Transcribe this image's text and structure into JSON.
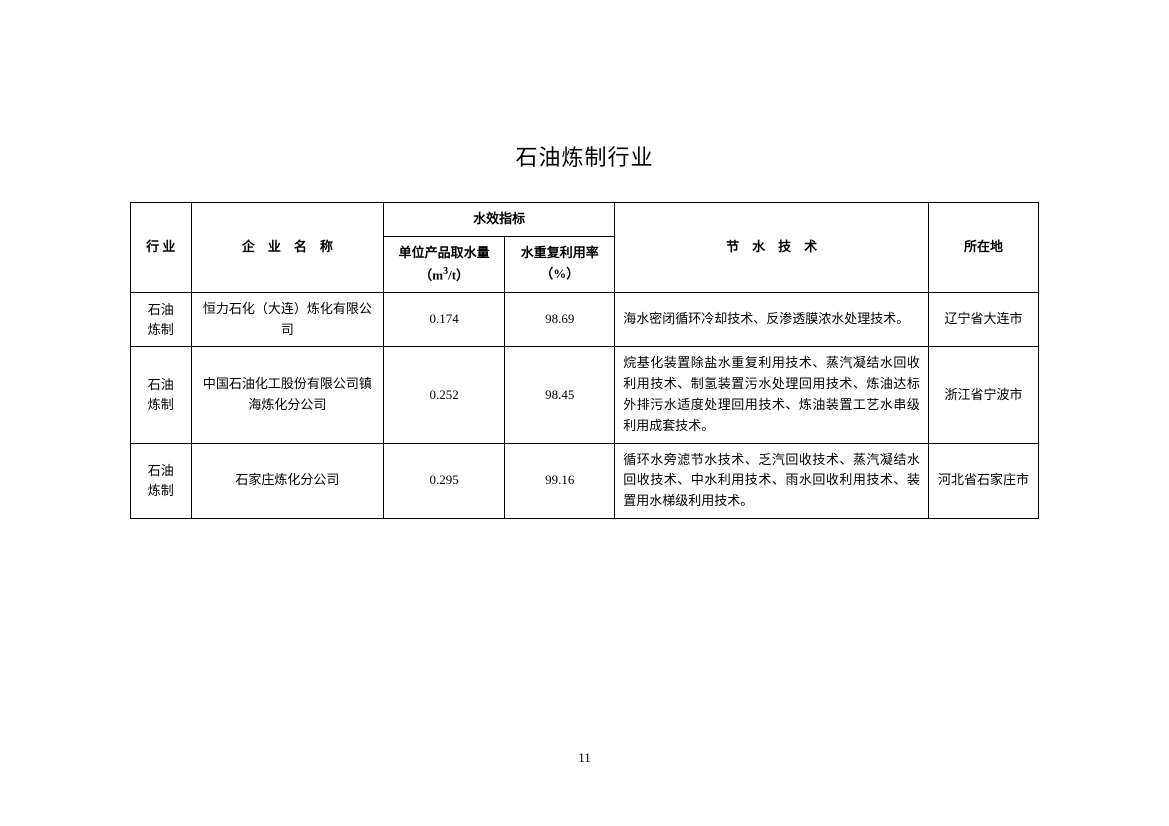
{
  "title": "石油炼制行业",
  "page_number": "11",
  "table": {
    "headers": {
      "industry": "行 业",
      "company": "企　业　名　称",
      "metrics_group": "水效指标",
      "metric1_line1": "单位产品取水量",
      "metric1_line2_prefix": "（m",
      "metric1_line2_sup": "3",
      "metric1_line2_suffix": "/t）",
      "metric2_line1": "水重复利用率",
      "metric2_line2": "（%）",
      "tech": "节　水　技　术",
      "location": "所在地",
      "border_color": "#000000",
      "text_color": "#000000",
      "background_color": "#ffffff",
      "font_size": 13
    },
    "rows": [
      {
        "industry_l1": "石油",
        "industry_l2": "炼制",
        "company": "恒力石化（大连）炼化有限公司",
        "metric1": "0.174",
        "metric2": "98.69",
        "tech": "海水密闭循环冷却技术、反渗透膜浓水处理技术。",
        "location": "辽宁省大连市"
      },
      {
        "industry_l1": "石油",
        "industry_l2": "炼制",
        "company": "中国石油化工股份有限公司镇海炼化分公司",
        "metric1": "0.252",
        "metric2": "98.45",
        "tech": "烷基化装置除盐水重复利用技术、蒸汽凝结水回收利用技术、制氢装置污水处理回用技术、炼油达标外排污水适度处理回用技术、炼油装置工艺水串级利用成套技术。",
        "location": "浙江省宁波市"
      },
      {
        "industry_l1": "石油",
        "industry_l2": "炼制",
        "company": "石家庄炼化分公司",
        "metric1": "0.295",
        "metric2": "99.16",
        "tech": "循环水旁滤节水技术、乏汽回收技术、蒸汽凝结水回收技术、中水利用技术、雨水回收利用技术、装置用水梯级利用技术。",
        "location": "河北省石家庄市"
      }
    ]
  }
}
